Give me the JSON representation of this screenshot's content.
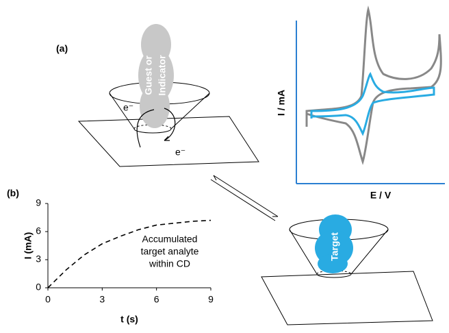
{
  "panel_labels": [
    "(a)",
    "(b)"
  ],
  "diagram": {
    "guest_label": [
      "Guest or",
      "Indicator"
    ],
    "electron_labels": [
      "e⁻",
      "e⁻"
    ],
    "target_label": "Target"
  },
  "cv_plot": {
    "xlabel": "E / V",
    "ylabel": "I / mA"
  },
  "chart_data": {
    "type": "line",
    "xlabel": "t (s)",
    "ylabel": "I (mA)",
    "x": [
      0,
      1,
      2,
      3,
      4,
      5,
      6,
      7,
      8,
      9
    ],
    "values": [
      0,
      1.9,
      3.5,
      4.7,
      5.5,
      6.2,
      6.7,
      6.9,
      7.1,
      7.2
    ],
    "color": "#000000",
    "dashed": true,
    "xlim": [
      0,
      9
    ],
    "ylim": [
      0,
      9
    ],
    "xticks": [
      0,
      3,
      6,
      9
    ],
    "yticks": [
      0,
      3,
      6,
      9
    ],
    "annotation": [
      "Accumulated",
      "target analyte",
      "within CD"
    ]
  }
}
